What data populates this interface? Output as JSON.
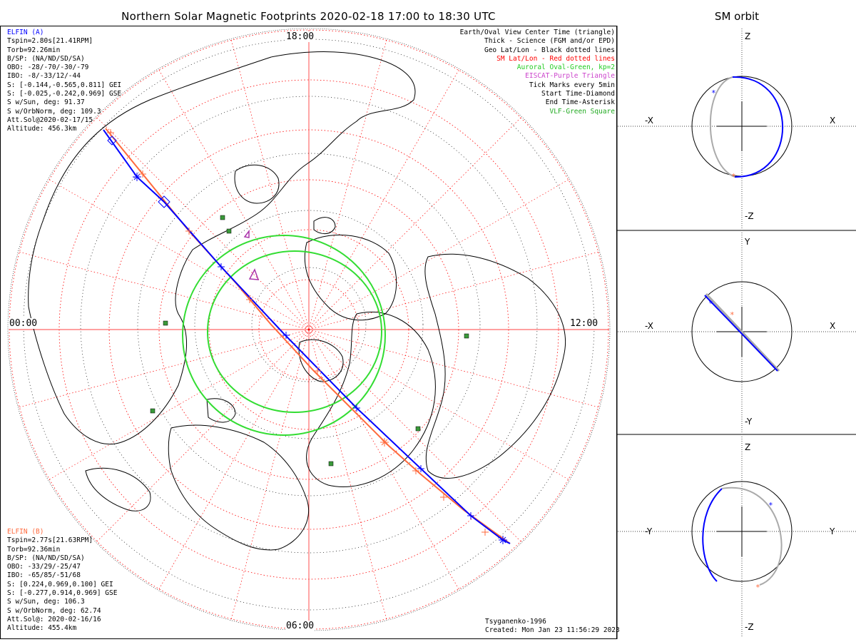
{
  "title": "Northern Solar Magnetic Footprints 2020-02-18 17:00 to 18:30 UTC",
  "sm_orbit_title": "SM orbit",
  "mlt_labels": {
    "top": "18:00",
    "left": "00:00",
    "right": "12:00",
    "bottom": "06:00"
  },
  "elfin_a": {
    "header": "ELFIN (A)",
    "color": "#0000ff",
    "lines": [
      "Tspin=2.80s[21.41RPM]",
      "Torb=92.26min",
      "B/SP: (NA/ND/SD/SA)",
      "OBO: -28/-70/-30/-79",
      "IBO: -8/-33/12/-44",
      "S: [-0.144,-0.565,0.811] GEI",
      "S: [-0.025,-0.242,0.969] GSE",
      "S w/Sun, deg: 91.37",
      "S w/OrbNorm, deg: 109.3",
      "Att.Sol@2020-02-17/15",
      "Altitude: 456.3km"
    ]
  },
  "elfin_b": {
    "header": "ELFIN (B)",
    "color": "#ff6a3d",
    "lines": [
      "Tspin=2.77s[21.63RPM]",
      "Torb=92.36min",
      "B/SP: (NA/ND/SD/SA)",
      "OBO: -33/29/-25/47",
      "IBO: -65/85/-51/68",
      "S: [0.224,0.969,0.100] GEI",
      "S: [-0.277,0.914,0.969] GSE",
      "S w/Sun, deg: 106.3",
      "S w/OrbNorm, deg: 62.74",
      "Att.Sol@: 2020-02-16/16",
      "Altitude: 455.4km"
    ]
  },
  "legend": [
    {
      "text": "Earth/Oval View Center Time (triangle)",
      "color": "#000000"
    },
    {
      "text": "Thick - Science (FGM and/or EPD)",
      "color": "#000000"
    },
    {
      "text": "Geo Lat/Lon - Black dotted lines",
      "color": "#000000"
    },
    {
      "text": "SM Lat/Lon - Red dotted lines",
      "color": "#ff0000"
    },
    {
      "text": "Auroral Oval-Green, kp=2",
      "color": "#22cc22"
    },
    {
      "text": "EISCAT-Purple Triangle",
      "color": "#cc44cc"
    },
    {
      "text": "Tick Marks every 5min",
      "color": "#000000"
    },
    {
      "text": "Start Time-Diamond",
      "color": "#000000"
    },
    {
      "text": "End Time-Asterisk",
      "color": "#000000"
    },
    {
      "text": "VLF-Green Square",
      "color": "#22aa22"
    }
  ],
  "credits": {
    "model": "Tsyganenko-1996",
    "created": "Created: Mon Jan 23 11:56:29 2023"
  },
  "sm_panels": [
    {
      "left_label": "-X",
      "right_label": "X",
      "top_label": "Z",
      "bottom_label": "-Z"
    },
    {
      "left_label": "-X",
      "right_label": "X",
      "top_label": "Y",
      "bottom_label": "-Y"
    },
    {
      "left_label": "-Y",
      "right_label": "Y",
      "top_label": "Z",
      "bottom_label": "-Z"
    }
  ],
  "colors": {
    "elfin_a_track": "#0000ff",
    "elfin_b_track": "#ff6a3d",
    "sm_grid": "#ff0000",
    "auroral_oval": "#33dd33",
    "eiscat": "#aa33aa",
    "vlf": "#3a9a3a",
    "orbit_gray": "#aaaaaa"
  }
}
